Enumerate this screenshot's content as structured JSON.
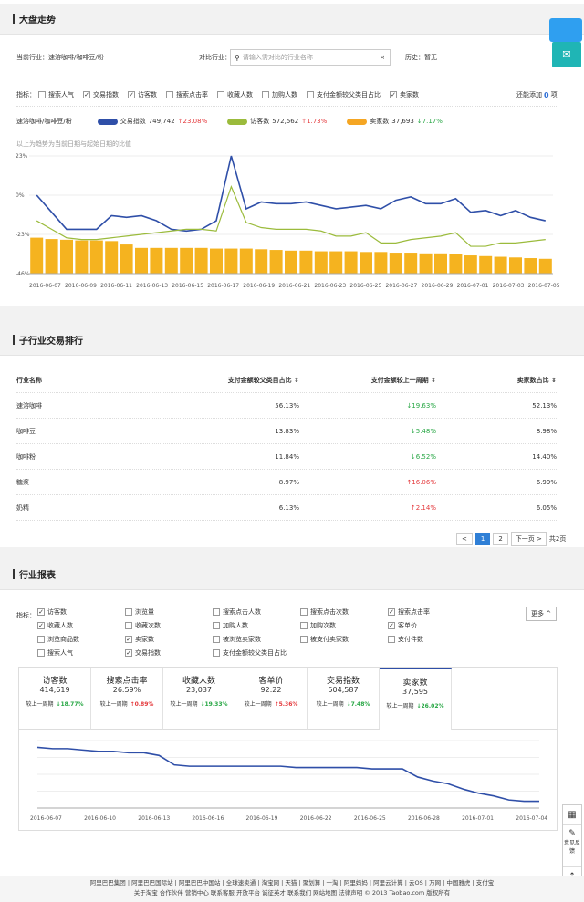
{
  "market": {
    "title": "大盘走势",
    "current_label": "当前行业：",
    "current_value": "速溶咖啡/咖啡豆/粉",
    "compare_label": "对比行业：",
    "search_placeholder": "请输入需对比的行业名称",
    "history_label": "历史：",
    "history_value": "暂无",
    "metrics_label": "指标：",
    "metrics": [
      {
        "label": "搜索人气",
        "checked": false
      },
      {
        "label": "交易指数",
        "checked": true
      },
      {
        "label": "访客数",
        "checked": true
      },
      {
        "label": "搜索点击率",
        "checked": false
      },
      {
        "label": "收藏人数",
        "checked": false
      },
      {
        "label": "加购人数",
        "checked": false
      },
      {
        "label": "支付金额较父类目占比",
        "checked": false
      },
      {
        "label": "卖家数",
        "checked": true
      }
    ],
    "added_label": "还能添加",
    "added_count": "0",
    "added_unit": "项",
    "legend_cat": "速溶咖啡/咖啡豆/粉",
    "legend": [
      {
        "name": "交易指数",
        "value": "749,742",
        "change": "↑23.08%",
        "dir": "up",
        "color": "#2f4fa8"
      },
      {
        "name": "访客数",
        "value": "572,562",
        "change": "↑1.73%",
        "dir": "up",
        "color": "#9bbb3c"
      },
      {
        "name": "卖家数",
        "value": "37,693",
        "change": "↓7.17%",
        "dir": "down",
        "color": "#f5a623"
      }
    ],
    "note": "以上为趋势为当前日期与起始日期的比值"
  },
  "chart_data": [
    {
      "type": "line+bar",
      "y_ticks": [
        "23%",
        "0%",
        "-23%",
        "-46%"
      ],
      "ylim": [
        -46,
        23
      ],
      "x_tick_labels": [
        "2016-06-07",
        "2016-06-09",
        "2016-06-11",
        "2016-06-13",
        "2016-06-15",
        "2016-06-17",
        "2016-06-19",
        "2016-06-21",
        "2016-06-23",
        "2016-06-25",
        "2016-06-27",
        "2016-06-29",
        "2016-07-01",
        "2016-07-03",
        "2016-07-05"
      ],
      "series": [
        {
          "name": "交易指数",
          "color": "#2f4fa8",
          "values": [
            0,
            -10,
            -20,
            -20,
            -20,
            -12,
            -13,
            -12,
            -15,
            -20,
            -21,
            -20,
            -15,
            23,
            -8,
            -4,
            -5,
            -5,
            -4,
            -6,
            -8,
            -7,
            -6,
            -8,
            -3,
            -1,
            -5,
            -5,
            -2,
            -10,
            -9,
            -12,
            -9,
            -13,
            -15
          ]
        },
        {
          "name": "访客数",
          "color": "#9bbb3c",
          "values": [
            -15,
            -20,
            -25,
            -26,
            -26,
            -25,
            -24,
            -23,
            -22,
            -21,
            -20,
            -20,
            -21,
            5,
            -16,
            -19,
            -20,
            -20,
            -20,
            -21,
            -24,
            -24,
            -22,
            -28,
            -28,
            -26,
            -25,
            -24,
            -22,
            -30,
            -30,
            -28,
            -28,
            -27,
            -26
          ]
        },
        {
          "name": "卖家数",
          "color": "#f5a623",
          "values": [
            0,
            -2,
            -3,
            -4,
            -4,
            -5,
            -10,
            -15,
            -15,
            -15,
            -15,
            -15,
            -16,
            -16,
            -16,
            -17,
            -18,
            -19,
            -19,
            -20,
            -20,
            -20,
            -21,
            -21,
            -22,
            -22,
            -23,
            -23,
            -24,
            -26,
            -27,
            -28,
            -29,
            -30,
            -31
          ]
        }
      ]
    },
    {
      "type": "line",
      "x_tick_labels": [
        "2016-06-07",
        "2016-06-10",
        "2016-06-13",
        "2016-06-16",
        "2016-06-19",
        "2016-06-22",
        "2016-06-25",
        "2016-06-28",
        "2016-07-01",
        "2016-07-04"
      ],
      "series": [
        {
          "name": "卖家数",
          "color": "#2f4fa8",
          "values": [
            45,
            44,
            44,
            43,
            42,
            42,
            41,
            41,
            39,
            32,
            31,
            31,
            31,
            31,
            31,
            31,
            31,
            30,
            30,
            30,
            30,
            30,
            29,
            29,
            29,
            23,
            20,
            18,
            14,
            11,
            9,
            6,
            5,
            5
          ]
        }
      ]
    }
  ],
  "sub": {
    "title": "子行业交易排行",
    "headers": [
      "行业名称",
      "支付金额较父类目占比 ⇕",
      "支付金额较上一周期 ⇕",
      "卖家数占比 ⇕"
    ],
    "rows": [
      {
        "name": "速溶咖啡",
        "share": "56.13%",
        "change": "↓19.63%",
        "dir": "down",
        "sellers": "52.13%"
      },
      {
        "name": "咖啡豆",
        "share": "13.83%",
        "change": "↓5.48%",
        "dir": "down",
        "sellers": "8.98%"
      },
      {
        "name": "咖啡粉",
        "share": "11.84%",
        "change": "↓6.52%",
        "dir": "down",
        "sellers": "14.40%"
      },
      {
        "name": "糖浆",
        "share": "8.97%",
        "change": "↑16.06%",
        "dir": "up",
        "sellers": "6.99%"
      },
      {
        "name": "奶精",
        "share": "6.13%",
        "change": "↑2.14%",
        "dir": "up",
        "sellers": "6.05%"
      }
    ],
    "pager": {
      "prev": "<",
      "p1": "1",
      "p2": "2",
      "next": "下一页 >",
      "total": "共2页"
    }
  },
  "report": {
    "title": "行业报表",
    "metrics_label": "指标：",
    "more": "更多 ^",
    "metrics": [
      [
        {
          "label": "访客数",
          "checked": true
        },
        {
          "label": "浏览量",
          "checked": false
        },
        {
          "label": "搜索点击人数",
          "checked": false
        },
        {
          "label": "搜索点击次数",
          "checked": false
        },
        {
          "label": "搜索点击率",
          "checked": true
        }
      ],
      [
        {
          "label": "收藏人数",
          "checked": true
        },
        {
          "label": "收藏次数",
          "checked": false
        },
        {
          "label": "加购人数",
          "checked": false
        },
        {
          "label": "加购次数",
          "checked": false
        },
        {
          "label": "客单价",
          "checked": true
        }
      ],
      [
        {
          "label": "浏览商品数",
          "checked": false
        },
        {
          "label": "卖家数",
          "checked": true
        },
        {
          "label": "被浏览卖家数",
          "checked": false
        },
        {
          "label": "被支付卖家数",
          "checked": false
        },
        {
          "label": "支付件数",
          "checked": false
        }
      ],
      [
        {
          "label": "搜索人气",
          "checked": false
        },
        {
          "label": "交易指数",
          "checked": true
        },
        {
          "label": "支付金额较父类目占比",
          "checked": false
        }
      ]
    ],
    "cards": [
      {
        "title": "访客数",
        "value": "414,619",
        "cmp": "较上一周期",
        "change": "↓18.77%",
        "dir": "down"
      },
      {
        "title": "搜索点击率",
        "value": "26.59%",
        "cmp": "较上一周期",
        "change": "↑0.89%",
        "dir": "up"
      },
      {
        "title": "收藏人数",
        "value": "23,037",
        "cmp": "较上一周期",
        "change": "↓19.33%",
        "dir": "down"
      },
      {
        "title": "客单价",
        "value": "92.22",
        "cmp": "较上一周期",
        "change": "↑5.36%",
        "dir": "up"
      },
      {
        "title": "交易指数",
        "value": "504,587",
        "cmp": "较上一周期",
        "change": "↓7.48%",
        "dir": "down"
      },
      {
        "title": "卖家数",
        "value": "37,595",
        "cmp": "较上一周期",
        "change": "↓26.02%",
        "dir": "down"
      }
    ]
  },
  "sidebar": {
    "feedback": "意见反馈"
  },
  "footer": {
    "line1": "阿里巴巴集团 | 阿里巴巴国际站 | 阿里巴巴中国站 | 全球速卖通 | 淘宝网 | 天猫 | 聚划算 | 一淘 | 阿里妈妈 | 阿里云计算 | 云OS | 万网 | 中国雅虎 | 支付宝",
    "line2": "关于淘宝 合作伙伴 营销中心 联系客服 开放平台 诚征英才 联系我们 网站地图 法律声明 © 2013 Taobao.com 版权所有"
  }
}
